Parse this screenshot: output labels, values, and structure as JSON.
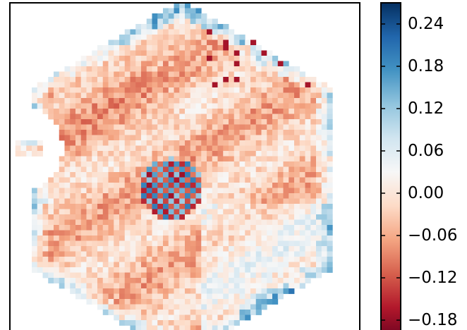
{
  "chart_data": {
    "type": "heatmap",
    "title": "",
    "xlabel": "",
    "ylabel": "",
    "grid": false,
    "axis_ticks_visible": false,
    "colormap": "RdBu (diverging red-white-blue)",
    "colormap_stops": [
      "#67001f",
      "#b2182b",
      "#d6604d",
      "#f4a582",
      "#fddbc7",
      "#f7f7f7",
      "#d1e5f0",
      "#92c5de",
      "#4393c3",
      "#2166ac",
      "#053061"
    ],
    "value_range": [
      -0.21,
      0.27
    ],
    "colorbar": {
      "placement": "right",
      "ticks": [
        0.24,
        0.18,
        0.12,
        0.06,
        0.0,
        -0.06,
        -0.12,
        -0.18
      ],
      "tick_labels": [
        "0.24",
        "0.18",
        "0.12",
        "0.06",
        "0.00",
        "−0.06",
        "−0.12",
        "−0.18"
      ]
    },
    "grid_size": [
      64,
      64
    ],
    "shape": "hexagonal footprint with a notch on the upper-left edge",
    "pattern": "mostly light red values in the upper-left and interior with regular diagonal stripes; strong blue values along the hexagon edges, especially top and lower-right; a small alternating red/blue cluster near the centre"
  }
}
